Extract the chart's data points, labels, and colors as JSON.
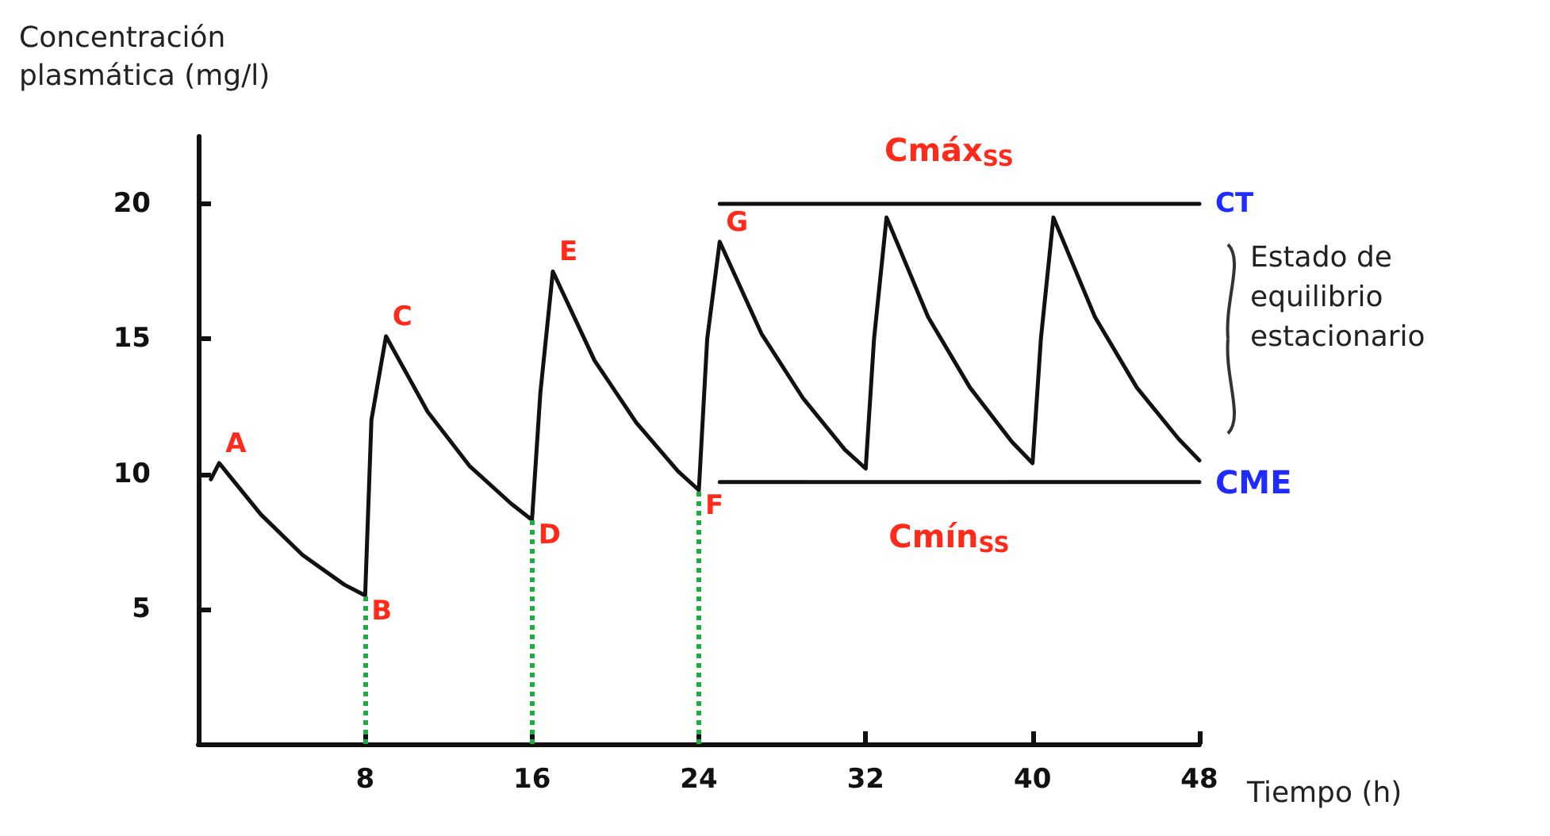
{
  "chart_data": {
    "type": "line",
    "ylabel": "Concentración plasmática (mg/l)",
    "xlabel": "Tiempo (h)",
    "xlim": [
      0,
      48
    ],
    "xticks": [
      8,
      16,
      24,
      32,
      40,
      48
    ],
    "ylim": [
      0,
      22.5
    ],
    "yticks": [
      5,
      10,
      15,
      20
    ],
    "grid": false,
    "marker": "none",
    "line_style": "solid",
    "series": [
      {
        "color": "#111111",
        "x": [
          0.6,
          1,
          3,
          5,
          7,
          8,
          8.3,
          9,
          11,
          13,
          15,
          16,
          16.4,
          17,
          19,
          21,
          23,
          24,
          24.4,
          25,
          27,
          29,
          31,
          32,
          32.4,
          33,
          35,
          37,
          39,
          40,
          40.4,
          41,
          43,
          45,
          47,
          48
        ],
        "values": [
          9.8,
          10.4,
          8.5,
          7.0,
          5.9,
          5.5,
          12,
          15.1,
          12.3,
          10.3,
          8.9,
          8.3,
          13,
          17.5,
          14.2,
          11.9,
          10.1,
          9.4,
          15,
          18.6,
          15.2,
          12.8,
          10.9,
          10.2,
          15,
          19.5,
          15.8,
          13.2,
          11.2,
          10.4,
          15,
          19.5,
          15.8,
          13.2,
          11.3,
          10.5
        ]
      },
      {
        "color": "#111111",
        "x": [
          25,
          48
        ],
        "values": [
          20,
          20
        ]
      },
      {
        "color": "#111111",
        "x": [
          25,
          48
        ],
        "values": [
          9.7,
          9.7
        ]
      }
    ],
    "ref_lines": [
      {
        "axis": "x",
        "value": 8,
        "color": "#22aa44",
        "line_style": "dotted"
      },
      {
        "axis": "x",
        "value": 16,
        "color": "#22aa44",
        "line_style": "dotted"
      },
      {
        "axis": "x",
        "value": 24,
        "color": "#22aa44",
        "line_style": "dotted"
      }
    ],
    "annotations": [
      {
        "text": "A",
        "x": 1,
        "y": 10.4
      },
      {
        "text": "B",
        "x": 8,
        "y": 5.5
      },
      {
        "text": "C",
        "x": 9,
        "y": 15.1
      },
      {
        "text": "D",
        "x": 16,
        "y": 8.3
      },
      {
        "text": "E",
        "x": 17,
        "y": 17.5
      },
      {
        "text": "F",
        "x": 24,
        "y": 9.4
      },
      {
        "text": "G",
        "x": 25,
        "y": 18.6
      },
      {
        "text": "Cmáx$_{SS}$",
        "x": 36,
        "y": 20
      },
      {
        "text": "Cmín$_{SS}$",
        "x": 36,
        "y": 9.7
      },
      {
        "text": "CT",
        "x": 48,
        "y": 20
      },
      {
        "text": "CME",
        "x": 48,
        "y": 9.7
      },
      "Estado de equilibrio estacionario"
    ]
  }
}
